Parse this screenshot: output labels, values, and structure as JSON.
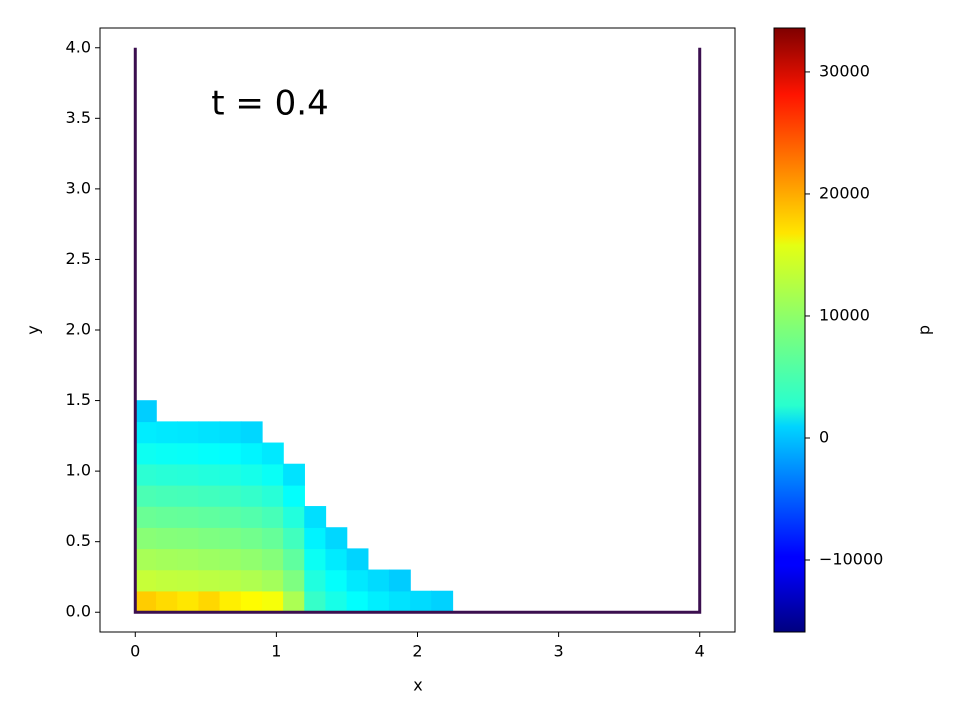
{
  "chart_data": {
    "type": "scatter",
    "annotation": "t = 0.4",
    "xlabel": "x",
    "ylabel": "y",
    "xlim": [
      -0.25,
      4.25
    ],
    "ylim": [
      -0.14,
      4.14
    ],
    "xticks": [
      0,
      1,
      2,
      3,
      4
    ],
    "yticks": [
      {
        "value": 0,
        "label": "0.0"
      },
      {
        "value": 0.5,
        "label": "0.5"
      },
      {
        "value": 1,
        "label": "1.0"
      },
      {
        "value": 1.5,
        "label": "1.5"
      },
      {
        "value": 2,
        "label": "2.0"
      },
      {
        "value": 2.5,
        "label": "2.5"
      },
      {
        "value": 3,
        "label": "3.0"
      },
      {
        "value": 3.5,
        "label": "3.5"
      },
      {
        "value": 4,
        "label": "4.0"
      }
    ],
    "boundary": {
      "color": "#3b0f4f",
      "x": [
        0,
        0,
        4,
        4
      ],
      "y": [
        4,
        0,
        0,
        4
      ]
    },
    "colorbar": {
      "label": "p",
      "colormap": "jet",
      "clim": [
        -15900,
        33600
      ],
      "ticks": [
        {
          "value": -10000,
          "label": "−10000"
        },
        0,
        10000,
        20000,
        30000
      ]
    },
    "x": [
      0.075,
      0.075,
      0.075,
      0.075,
      0.075,
      0.075,
      0.075,
      0.075,
      0.075,
      0.075,
      0.225,
      0.225,
      0.225,
      0.225,
      0.225,
      0.225,
      0.225,
      0.225,
      0.225,
      0.375,
      0.375,
      0.375,
      0.375,
      0.375,
      0.375,
      0.375,
      0.375,
      0.375,
      0.525,
      0.525,
      0.525,
      0.525,
      0.525,
      0.525,
      0.525,
      0.525,
      0.525,
      0.675,
      0.675,
      0.675,
      0.675,
      0.675,
      0.675,
      0.675,
      0.675,
      0.675,
      0.825,
      0.825,
      0.825,
      0.825,
      0.825,
      0.825,
      0.825,
      0.825,
      0.825,
      0.975,
      0.975,
      0.975,
      0.975,
      0.975,
      0.975,
      0.975,
      0.975,
      1.125,
      1.125,
      1.125,
      1.125,
      1.125,
      1.125,
      1.125,
      1.275,
      1.275,
      1.275,
      1.275,
      1.275,
      1.425,
      1.425,
      1.425,
      1.425,
      1.575,
      1.575,
      1.575,
      1.725,
      1.725,
      1.875,
      1.875,
      2.025,
      2.175
    ],
    "y": [
      0.075,
      0.225,
      0.375,
      0.525,
      0.675,
      0.825,
      0.975,
      1.125,
      1.275,
      1.425,
      0.075,
      0.225,
      0.375,
      0.525,
      0.675,
      0.825,
      0.975,
      1.125,
      1.275,
      0.075,
      0.225,
      0.375,
      0.525,
      0.675,
      0.825,
      0.975,
      1.125,
      1.275,
      0.075,
      0.225,
      0.375,
      0.525,
      0.675,
      0.825,
      0.975,
      1.125,
      1.275,
      0.075,
      0.225,
      0.375,
      0.525,
      0.675,
      0.825,
      0.975,
      1.125,
      1.275,
      0.075,
      0.225,
      0.375,
      0.525,
      0.675,
      0.825,
      0.975,
      1.125,
      1.275,
      0.075,
      0.225,
      0.375,
      0.525,
      0.675,
      0.825,
      0.975,
      1.125,
      0.075,
      0.225,
      0.375,
      0.525,
      0.675,
      0.825,
      0.975,
      0.075,
      0.225,
      0.375,
      0.525,
      0.675,
      0.075,
      0.225,
      0.375,
      0.525,
      0.075,
      0.225,
      0.375,
      0.075,
      0.225,
      0.075,
      0.225,
      0.075,
      0.075
    ],
    "c": [
      17500,
      12300,
      10800,
      9300,
      7800,
      6300,
      4800,
      3300,
      1800,
      300,
      16800,
      12100,
      10600,
      9100,
      7600,
      6100,
      4600,
      3100,
      1600,
      16200,
      12000,
      10500,
      9000,
      7500,
      6000,
      4500,
      3000,
      1500,
      17000,
      11800,
      10300,
      8800,
      7300,
      5800,
      4300,
      2800,
      1300,
      15800,
      11600,
      10100,
      8600,
      7100,
      5600,
      4100,
      2600,
      1100,
      15200,
      11200,
      9700,
      8200,
      6700,
      5200,
      3700,
      2200,
      700,
      14600,
      10600,
      9100,
      7600,
      6100,
      4600,
      3100,
      1600,
      11000,
      8800,
      7300,
      5800,
      4300,
      2800,
      1300,
      5300,
      4200,
      3200,
      2100,
      1100,
      3800,
      2800,
      1700,
      700,
      2700,
      1600,
      600,
      1900,
      900,
      1300,
      200,
      900,
      500
    ]
  }
}
